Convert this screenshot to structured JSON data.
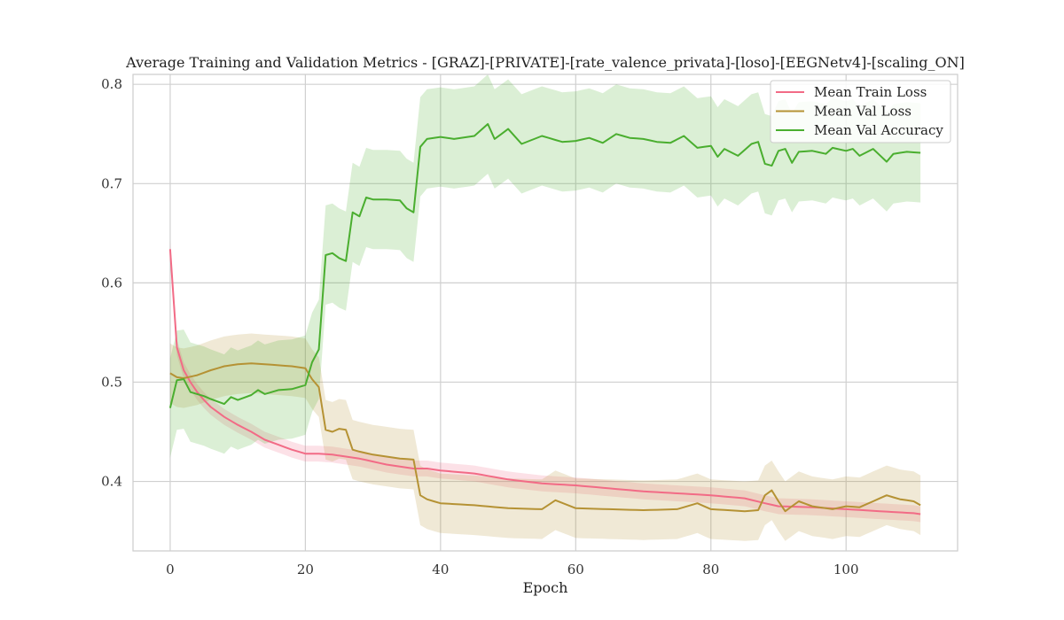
{
  "chart_data": {
    "type": "line",
    "title": "Average Training and Validation Metrics - [GRAZ]-[PRIVATE]-[rate_valence_privata]-[loso]-[EEGNetv4]-[scaling_ON]",
    "xlabel": "Epoch",
    "ylabel": "",
    "xlim": [
      -5.5,
      116.5
    ],
    "ylim": [
      0.33,
      0.81
    ],
    "xticks": [
      0,
      20,
      40,
      60,
      80,
      100
    ],
    "yticks": [
      0.4,
      0.5,
      0.6,
      0.7,
      0.8
    ],
    "grid": true,
    "legend_position": "top-right",
    "series": [
      {
        "name": "Mean Train Loss",
        "color": "#f26b86",
        "keypoints": [
          [
            0,
            0.634
          ],
          [
            1,
            0.535
          ],
          [
            2,
            0.512
          ],
          [
            3,
            0.5
          ],
          [
            4,
            0.49
          ],
          [
            5,
            0.482
          ],
          [
            6,
            0.475
          ],
          [
            7,
            0.47
          ],
          [
            8,
            0.465
          ],
          [
            10,
            0.457
          ],
          [
            12,
            0.45
          ],
          [
            14,
            0.442
          ],
          [
            16,
            0.437
          ],
          [
            18,
            0.432
          ],
          [
            20,
            0.428
          ],
          [
            22,
            0.428
          ],
          [
            24,
            0.427
          ],
          [
            26,
            0.425
          ],
          [
            28,
            0.423
          ],
          [
            30,
            0.42
          ],
          [
            32,
            0.417
          ],
          [
            34,
            0.415
          ],
          [
            36,
            0.413
          ],
          [
            38,
            0.413
          ],
          [
            40,
            0.411
          ],
          [
            45,
            0.408
          ],
          [
            50,
            0.402
          ],
          [
            55,
            0.398
          ],
          [
            60,
            0.396
          ],
          [
            65,
            0.393
          ],
          [
            70,
            0.39
          ],
          [
            75,
            0.388
          ],
          [
            80,
            0.386
          ],
          [
            85,
            0.383
          ],
          [
            88,
            0.378
          ],
          [
            90,
            0.375
          ],
          [
            95,
            0.374
          ],
          [
            100,
            0.372
          ],
          [
            105,
            0.37
          ],
          [
            110,
            0.368
          ],
          [
            111,
            0.367
          ]
        ],
        "band_offset": 0.008
      },
      {
        "name": "Mean Val Loss",
        "color": "#b59234",
        "keypoints": [
          [
            0,
            0.509
          ],
          [
            1,
            0.505
          ],
          [
            2,
            0.504
          ],
          [
            4,
            0.507
          ],
          [
            6,
            0.512
          ],
          [
            8,
            0.516
          ],
          [
            10,
            0.518
          ],
          [
            12,
            0.519
          ],
          [
            14,
            0.518
          ],
          [
            16,
            0.517
          ],
          [
            18,
            0.516
          ],
          [
            20,
            0.514
          ],
          [
            21,
            0.503
          ],
          [
            22,
            0.495
          ],
          [
            23,
            0.452
          ],
          [
            24,
            0.45
          ],
          [
            25,
            0.453
          ],
          [
            26,
            0.452
          ],
          [
            27,
            0.432
          ],
          [
            28,
            0.43
          ],
          [
            30,
            0.427
          ],
          [
            32,
            0.425
          ],
          [
            34,
            0.423
          ],
          [
            36,
            0.422
          ],
          [
            37,
            0.386
          ],
          [
            38,
            0.382
          ],
          [
            40,
            0.378
          ],
          [
            45,
            0.376
          ],
          [
            50,
            0.373
          ],
          [
            55,
            0.372
          ],
          [
            57,
            0.381
          ],
          [
            60,
            0.373
          ],
          [
            65,
            0.372
          ],
          [
            70,
            0.371
          ],
          [
            75,
            0.372
          ],
          [
            78,
            0.378
          ],
          [
            80,
            0.372
          ],
          [
            85,
            0.37
          ],
          [
            87,
            0.371
          ],
          [
            88,
            0.386
          ],
          [
            89,
            0.391
          ],
          [
            90,
            0.38
          ],
          [
            91,
            0.37
          ],
          [
            93,
            0.38
          ],
          [
            95,
            0.375
          ],
          [
            98,
            0.372
          ],
          [
            100,
            0.375
          ],
          [
            102,
            0.374
          ],
          [
            104,
            0.38
          ],
          [
            106,
            0.386
          ],
          [
            108,
            0.382
          ],
          [
            110,
            0.38
          ],
          [
            111,
            0.376
          ]
        ],
        "band_offset": 0.03
      },
      {
        "name": "Mean Val Accuracy",
        "color": "#4aae2f",
        "keypoints": [
          [
            0,
            0.474
          ],
          [
            1,
            0.502
          ],
          [
            2,
            0.503
          ],
          [
            3,
            0.49
          ],
          [
            4,
            0.488
          ],
          [
            5,
            0.486
          ],
          [
            6,
            0.483
          ],
          [
            8,
            0.478
          ],
          [
            9,
            0.485
          ],
          [
            10,
            0.482
          ],
          [
            12,
            0.487
          ],
          [
            13,
            0.492
          ],
          [
            14,
            0.488
          ],
          [
            16,
            0.492
          ],
          [
            18,
            0.493
          ],
          [
            19,
            0.495
          ],
          [
            20,
            0.497
          ],
          [
            21,
            0.52
          ],
          [
            22,
            0.533
          ],
          [
            23,
            0.628
          ],
          [
            24,
            0.63
          ],
          [
            25,
            0.625
          ],
          [
            26,
            0.622
          ],
          [
            27,
            0.671
          ],
          [
            28,
            0.667
          ],
          [
            29,
            0.686
          ],
          [
            30,
            0.684
          ],
          [
            32,
            0.684
          ],
          [
            34,
            0.683
          ],
          [
            35,
            0.675
          ],
          [
            36,
            0.671
          ],
          [
            37,
            0.737
          ],
          [
            38,
            0.745
          ],
          [
            40,
            0.747
          ],
          [
            42,
            0.745
          ],
          [
            45,
            0.748
          ],
          [
            47,
            0.76
          ],
          [
            48,
            0.745
          ],
          [
            50,
            0.755
          ],
          [
            52,
            0.74
          ],
          [
            55,
            0.748
          ],
          [
            58,
            0.742
          ],
          [
            60,
            0.743
          ],
          [
            62,
            0.746
          ],
          [
            64,
            0.741
          ],
          [
            66,
            0.75
          ],
          [
            68,
            0.746
          ],
          [
            70,
            0.745
          ],
          [
            72,
            0.742
          ],
          [
            74,
            0.741
          ],
          [
            76,
            0.748
          ],
          [
            78,
            0.736
          ],
          [
            80,
            0.738
          ],
          [
            81,
            0.727
          ],
          [
            82,
            0.735
          ],
          [
            84,
            0.728
          ],
          [
            86,
            0.74
          ],
          [
            87,
            0.742
          ],
          [
            88,
            0.72
          ],
          [
            89,
            0.718
          ],
          [
            90,
            0.733
          ],
          [
            91,
            0.735
          ],
          [
            92,
            0.721
          ],
          [
            93,
            0.732
          ],
          [
            95,
            0.733
          ],
          [
            97,
            0.73
          ],
          [
            98,
            0.736
          ],
          [
            100,
            0.733
          ],
          [
            101,
            0.735
          ],
          [
            102,
            0.728
          ],
          [
            104,
            0.735
          ],
          [
            106,
            0.722
          ],
          [
            107,
            0.73
          ],
          [
            109,
            0.732
          ],
          [
            111,
            0.731
          ]
        ],
        "band_offset": 0.05
      }
    ],
    "legend": [
      "Mean Train Loss",
      "Mean Val Loss",
      "Mean Val Accuracy"
    ]
  }
}
